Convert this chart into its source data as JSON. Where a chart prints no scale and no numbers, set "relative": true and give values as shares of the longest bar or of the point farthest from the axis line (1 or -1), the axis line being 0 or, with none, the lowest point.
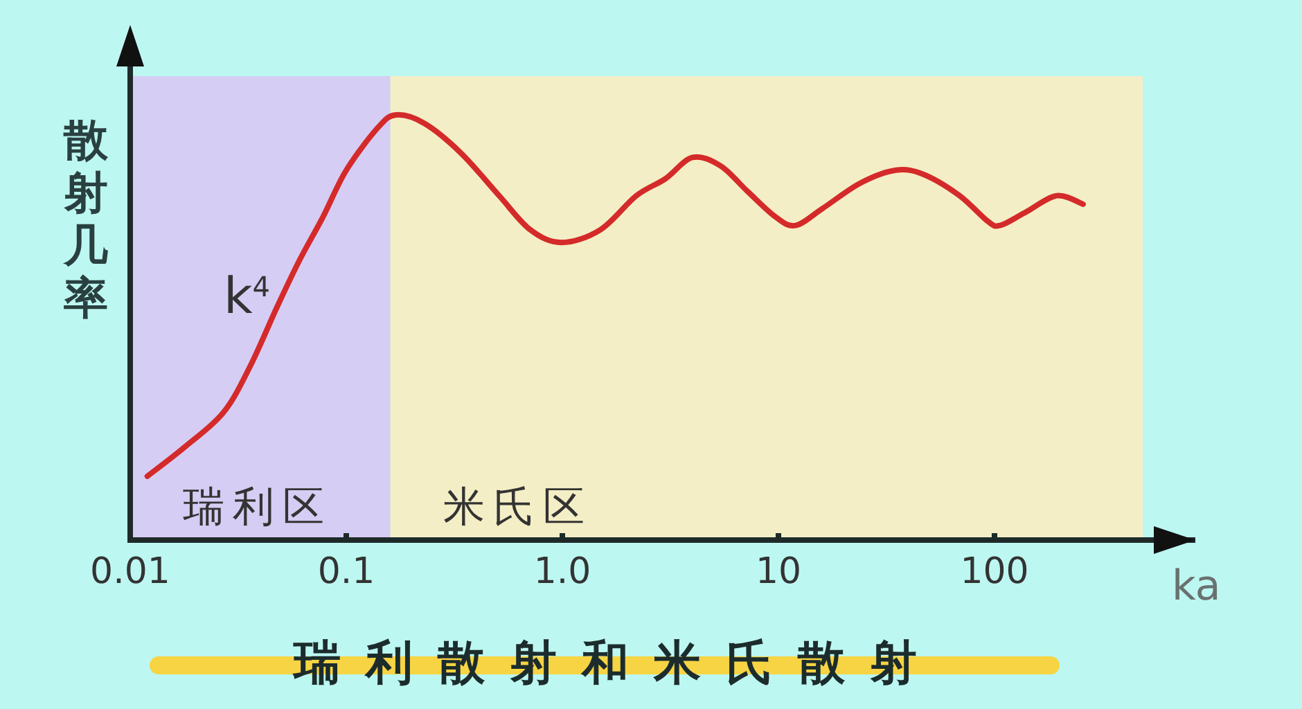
{
  "chart_data": {
    "type": "line",
    "title": "瑞利散射和米氏散射",
    "xlabel": "ka",
    "ylabel": "散射几率",
    "relative": true,
    "log": "x",
    "line_style": "solid",
    "xlim": [
      0.01,
      850
    ],
    "xticks": [
      0.01,
      0.1,
      {
        "value": 1,
        "label": "1.0"
      },
      10,
      100
    ],
    "x": [
      0.012,
      0.018,
      0.027,
      0.036,
      0.048,
      0.061,
      0.078,
      0.1,
      0.14,
      0.17,
      0.23,
      0.34,
      0.51,
      0.71,
      0.99,
      1.5,
      2.2,
      3.0,
      4.0,
      5.4,
      7.2,
      9.7,
      12,
      16,
      24,
      35,
      47,
      69,
      93,
      106,
      138,
      194,
      257
    ],
    "series": [
      {
        "color": "#d42a2a",
        "values": [
          0.15,
          0.22,
          0.3,
          0.41,
          0.55,
          0.66,
          0.76,
          0.87,
          0.97,
          1,
          0.98,
          0.91,
          0.81,
          0.73,
          0.7,
          0.73,
          0.81,
          0.85,
          0.9,
          0.88,
          0.82,
          0.76,
          0.74,
          0.78,
          0.84,
          0.87,
          0.86,
          0.81,
          0.75,
          0.74,
          0.77,
          0.81,
          0.79
        ]
      }
    ],
    "bands": [
      {
        "axis": "x",
        "from": 0.01,
        "to": 0.16,
        "label": "瑞利区",
        "color": "#d6cdf4"
      },
      {
        "axis": "x",
        "from": 0.16,
        "to": 485,
        "label": "米氏区",
        "color": "#f4eec6"
      }
    ],
    "annotations": [
      {
        "text": "k$^{4}$",
        "x": 0.05,
        "y": 0.57
      }
    ]
  }
}
